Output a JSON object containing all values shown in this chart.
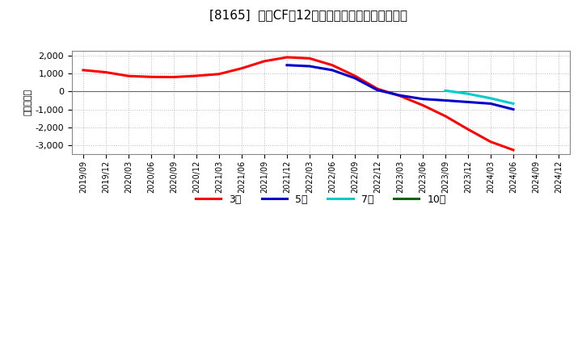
{
  "title": "[8165]  営業CFだ12か月移動合計の平均値の推移",
  "ylabel": "（百万円）",
  "ylim": [
    -3500,
    2300
  ],
  "yticks": [
    -3000,
    -2000,
    -1000,
    0,
    1000,
    2000
  ],
  "background_color": "#ffffff",
  "plot_bg_color": "#ffffff",
  "grid_color": "#bbbbbb",
  "title_fontsize": 11,
  "series": {
    "3年": {
      "color": "#ff0000",
      "x": [
        "2019/09",
        "2019/12",
        "2020/03",
        "2020/06",
        "2020/09",
        "2020/12",
        "2021/03",
        "2021/06",
        "2021/09",
        "2021/12",
        "2022/03",
        "2022/06",
        "2022/09",
        "2022/12",
        "2023/03",
        "2023/06",
        "2023/09",
        "2023/12",
        "2024/03",
        "2024/06"
      ],
      "y": [
        1200,
        1080,
        870,
        820,
        810,
        880,
        980,
        1300,
        1700,
        1920,
        1860,
        1480,
        880,
        150,
        -250,
        -770,
        -1380,
        -2120,
        -2820,
        -3280
      ]
    },
    "5年": {
      "color": "#0000cc",
      "x": [
        "2021/12",
        "2022/03",
        "2022/06",
        "2022/09",
        "2022/12",
        "2023/03",
        "2023/06",
        "2023/09",
        "2023/12",
        "2024/03",
        "2024/06"
      ],
      "y": [
        1480,
        1420,
        1200,
        750,
        80,
        -220,
        -420,
        -500,
        -590,
        -680,
        -1000
      ]
    },
    "7年": {
      "color": "#00cccc",
      "x": [
        "2023/09",
        "2023/12",
        "2024/03",
        "2024/06"
      ],
      "y": [
        50,
        -130,
        -380,
        -680
      ]
    },
    "10年": {
      "color": "#006600",
      "x": [],
      "y": []
    }
  },
  "x_labels": [
    "2019/09",
    "2019/12",
    "2020/03",
    "2020/06",
    "2020/09",
    "2020/12",
    "2021/03",
    "2021/06",
    "2021/09",
    "2021/12",
    "2022/03",
    "2022/06",
    "2022/09",
    "2022/12",
    "2023/03",
    "2023/06",
    "2023/09",
    "2023/12",
    "2024/03",
    "2024/06",
    "2024/09",
    "2024/12"
  ],
  "legend_labels": [
    "3年",
    "5年",
    "7年",
    "10年"
  ],
  "legend_colors": [
    "#ff0000",
    "#0000cc",
    "#00cccc",
    "#006600"
  ]
}
